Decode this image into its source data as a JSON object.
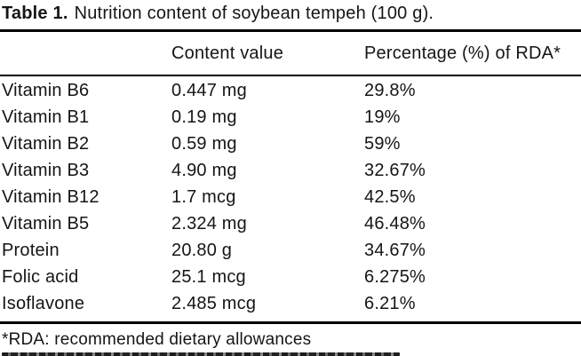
{
  "document": {
    "title_label": "Table 1.",
    "title_text": "Nutrition content of soybean tempeh (100 g).",
    "footnote": "*RDA: recommended dietary allowances"
  },
  "table": {
    "col_nutrient_header": "",
    "col_content_header": "Content value",
    "col_rda_header": "Percentage (%) of RDA*",
    "rows": [
      {
        "nutrient": "Vitamin B6",
        "content": "0.447 mg",
        "rda": "29.8%"
      },
      {
        "nutrient": "Vitamin B1",
        "content": "0.19 mg",
        "rda": "19%"
      },
      {
        "nutrient": "Vitamin B2",
        "content": "0.59 mg",
        "rda": "59%"
      },
      {
        "nutrient": "Vitamin B3",
        "content": "4.90 mg",
        "rda": "32.67%"
      },
      {
        "nutrient": "Vitamin B12",
        "content": "1.7 mcg",
        "rda": "42.5%"
      },
      {
        "nutrient": "Vitamin B5",
        "content": "2.324 mg",
        "rda": "46.48%"
      },
      {
        "nutrient": "Protein",
        "content": "20.80 g",
        "rda": "34.67%"
      },
      {
        "nutrient": "Folic acid",
        "content": "25.1 mcg",
        "rda": "6.275%"
      },
      {
        "nutrient": "Isoflavone",
        "content": "2.485 mcg",
        "rda": "6.21%"
      }
    ]
  },
  "colors": {
    "text": "#151515",
    "rule": "#000000",
    "background": "#ffffff"
  }
}
